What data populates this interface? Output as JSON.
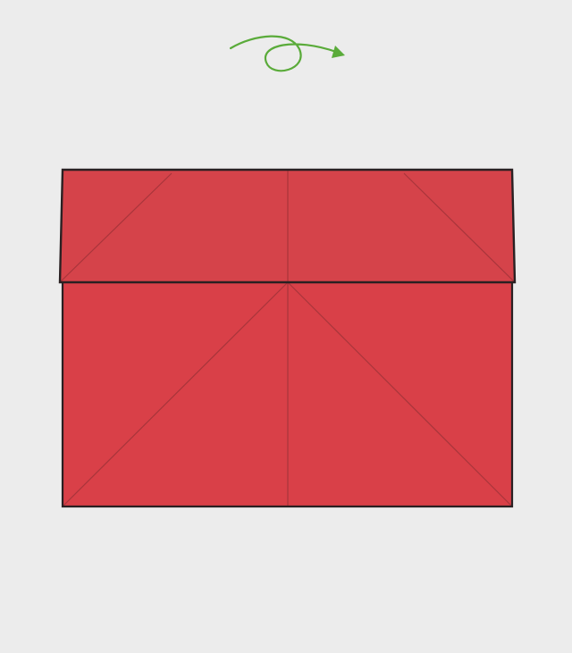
{
  "diagram": {
    "description_shown": false,
    "colors": {
      "background": "#ececec",
      "paper": "#d94048",
      "paper_flap": "#d5434a",
      "outline": "#2a2022",
      "crease": "#a8353b",
      "arrow": "#5aab3a"
    },
    "instruction_icon": "turn-over-arrow-icon"
  }
}
